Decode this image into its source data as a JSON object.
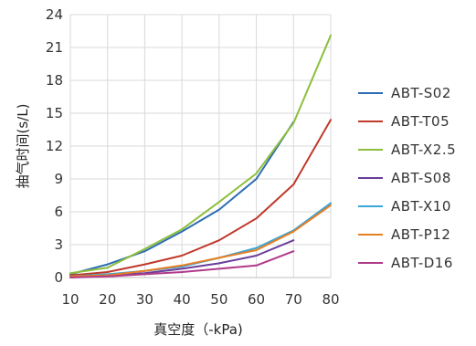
{
  "chart_data": {
    "type": "line",
    "xlabel": "真空度（-kPa)",
    "ylabel": "抽气时间(s/L)",
    "x": [
      10,
      20,
      30,
      40,
      50,
      60,
      70,
      80
    ],
    "xlim": [
      10,
      80
    ],
    "ylim": [
      0,
      24
    ],
    "x_ticks": [
      "10",
      "20",
      "30",
      "40",
      "50",
      "60",
      "70",
      "80"
    ],
    "y_ticks": [
      "0",
      "3",
      "6",
      "9",
      "12",
      "15",
      "18",
      "21",
      "24"
    ],
    "grid": true,
    "legend_position": "right",
    "series": [
      {
        "name": "ABT-S02",
        "color": "#2e6db4",
        "x": [
          10,
          20,
          30,
          40,
          50,
          60,
          70
        ],
        "values": [
          0.3,
          1.2,
          2.4,
          4.2,
          6.2,
          9.0,
          14.2
        ]
      },
      {
        "name": "ABT-T05",
        "color": "#c0392b",
        "x": [
          10,
          20,
          30,
          40,
          50,
          60,
          70,
          80
        ],
        "values": [
          0.2,
          0.5,
          1.2,
          2.0,
          3.4,
          5.4,
          8.5,
          14.4
        ]
      },
      {
        "name": "ABT-X2.5",
        "color": "#8dbf3c",
        "x": [
          10,
          20,
          30,
          40,
          50,
          60,
          70,
          80
        ],
        "values": [
          0.4,
          0.9,
          2.6,
          4.4,
          6.9,
          9.5,
          14.1,
          22.1
        ]
      },
      {
        "name": "ABT-S08",
        "color": "#6a3d9a",
        "x": [
          10,
          20,
          30,
          40,
          50,
          60,
          70
        ],
        "values": [
          0.1,
          0.2,
          0.4,
          0.8,
          1.3,
          2.0,
          3.4
        ]
      },
      {
        "name": "ABT-X10",
        "color": "#3aa6d6",
        "x": [
          10,
          20,
          30,
          40,
          50,
          60,
          70,
          80
        ],
        "values": [
          0.1,
          0.3,
          0.6,
          1.0,
          1.8,
          2.7,
          4.3,
          6.8
        ]
      },
      {
        "name": "ABT-P12",
        "color": "#e67e22",
        "x": [
          10,
          20,
          30,
          40,
          50,
          60,
          70,
          80
        ],
        "values": [
          0.1,
          0.2,
          0.6,
          1.1,
          1.8,
          2.5,
          4.2,
          6.6
        ]
      },
      {
        "name": "ABT-D16",
        "color": "#b03a8a",
        "x": [
          10,
          20,
          30,
          40,
          50,
          60,
          70
        ],
        "values": [
          0.0,
          0.1,
          0.3,
          0.5,
          0.8,
          1.1,
          2.4
        ]
      }
    ]
  }
}
